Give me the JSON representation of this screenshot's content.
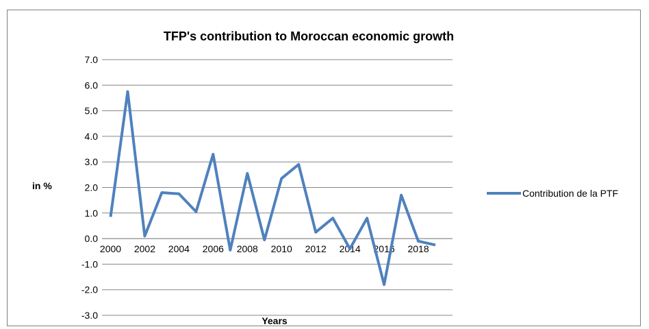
{
  "chart_data": {
    "type": "line",
    "title": "TFP's contribution to Moroccan economic growth",
    "xlabel": "Years",
    "ylabel": "in %",
    "ylim": [
      -3.0,
      7.0
    ],
    "y_ticks": [
      "7.0",
      "6.0",
      "5.0",
      "4.0",
      "3.0",
      "2.0",
      "1.0",
      "0.0",
      "-1.0",
      "-2.0",
      "-3.0"
    ],
    "x_tick_labels": [
      "2000",
      "2002",
      "2004",
      "2006",
      "2008",
      "2010",
      "2012",
      "2014",
      "2016",
      "2018"
    ],
    "grid": true,
    "legend_position": "right",
    "color": "#4f81bd",
    "x": [
      2000,
      2001,
      2002,
      2003,
      2004,
      2005,
      2006,
      2007,
      2008,
      2009,
      2010,
      2011,
      2012,
      2013,
      2014,
      2015,
      2016,
      2017,
      2018,
      2019
    ],
    "series": [
      {
        "name": "Contribution de la PTF",
        "values": [
          0.85,
          5.75,
          0.1,
          1.8,
          1.75,
          1.05,
          3.3,
          -0.45,
          2.55,
          -0.05,
          2.35,
          2.9,
          0.25,
          0.8,
          -0.4,
          0.8,
          -1.8,
          1.7,
          -0.1,
          -0.25
        ]
      }
    ]
  }
}
